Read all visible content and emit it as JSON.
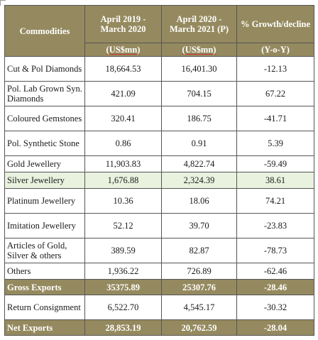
{
  "headers": {
    "commodities": "Commodities",
    "col2": "April 2019 - March 2020",
    "col3": "April 2020 - March 2021 (P)",
    "col4": "% Growth/decline",
    "unit2": "(US$mn)",
    "unit3": "(US$mn)",
    "unit4": "(Y-o-Y)"
  },
  "rows": [
    {
      "name": "Cut & Pol Diamonds",
      "v2019": "18,664.53",
      "v2020": "16,401.30",
      "growth": "-12.13"
    },
    {
      "name": "Pol. Lab Grown Syn. Diamonds",
      "v2019": "421.09",
      "v2020": "704.15",
      "growth": "67.22"
    },
    {
      "name": "Coloured Gemstones",
      "v2019": "320.41",
      "v2020": "186.75",
      "growth": "-41.71"
    },
    {
      "name": "Pol. Synthetic Stone",
      "v2019": "0.86",
      "v2020": "0.91",
      "growth": "5.39"
    },
    {
      "name": "Gold Jewellery",
      "v2019": "11,903.83",
      "v2020": "4,822.74",
      "growth": "-59.49"
    },
    {
      "name": "Silver Jewellery",
      "v2019": "1,676.88",
      "v2020": "2,324.39",
      "growth": "38.61"
    },
    {
      "name": "Platinum Jewellery",
      "v2019": "10.36",
      "v2020": "18.06",
      "growth": "74.21"
    },
    {
      "name": "Imitation Jewellery",
      "v2019": "52.12",
      "v2020": "39.70",
      "growth": "-23.83"
    },
    {
      "name": "Articles of Gold, Silver & others",
      "v2019": "389.59",
      "v2020": "82.87",
      "growth": "-78.73"
    },
    {
      "name": "Others",
      "v2019": "1,936.22",
      "v2020": "726.89",
      "growth": "-62.46"
    },
    {
      "name": "Gross Exports",
      "v2019": "35375.89",
      "v2020": "25307.76",
      "growth": "-28.46"
    },
    {
      "name": "Return Consignment",
      "v2019": "6,522.70",
      "v2020": "4,545.17",
      "growth": "-30.32"
    },
    {
      "name": "Net Exports",
      "v2019": "28,853.19",
      "v2020": "20,762.59",
      "growth": "-28.04"
    }
  ],
  "colors": {
    "header_bg": "#958a5f",
    "highlight_row": "#e9f2df"
  }
}
